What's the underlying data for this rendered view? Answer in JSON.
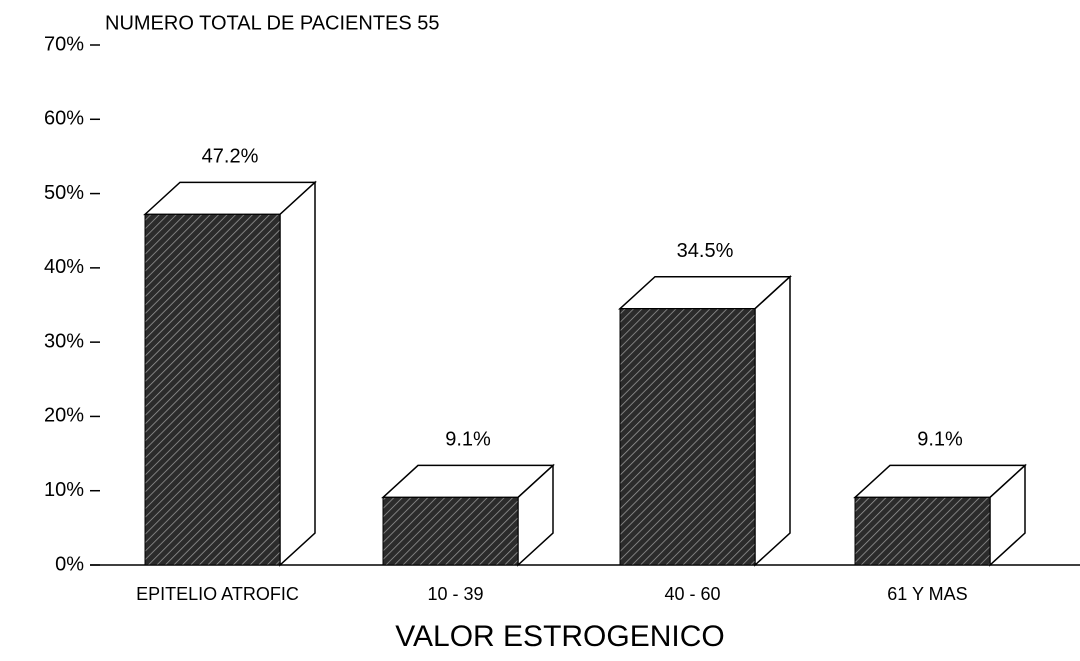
{
  "chart_data": {
    "type": "bar3d",
    "title": "NUMERO TOTAL DE PACIENTES  55",
    "x_label": "VALOR ESTROGENICO",
    "categories": [
      "EPITELIO ATROFIC",
      "10 - 39",
      "40 - 60",
      "61 Y MAS"
    ],
    "values": [
      47.2,
      9.1,
      34.5,
      9.1
    ],
    "value_labels": [
      "47.2%",
      "9.1%",
      "34.5%",
      "9.1%"
    ],
    "color": "#2b2b2b",
    "ylim": [
      0,
      70
    ],
    "yticks": [
      {
        "value": 0,
        "label": "0%"
      },
      {
        "value": 10,
        "label": "10%"
      },
      {
        "value": 20,
        "label": "20%"
      },
      {
        "value": 30,
        "label": "30%"
      },
      {
        "value": 40,
        "label": "40%"
      },
      {
        "value": 50,
        "label": "50%"
      },
      {
        "value": 60,
        "label": "60%"
      },
      {
        "value": 70,
        "label": "70%"
      }
    ]
  }
}
